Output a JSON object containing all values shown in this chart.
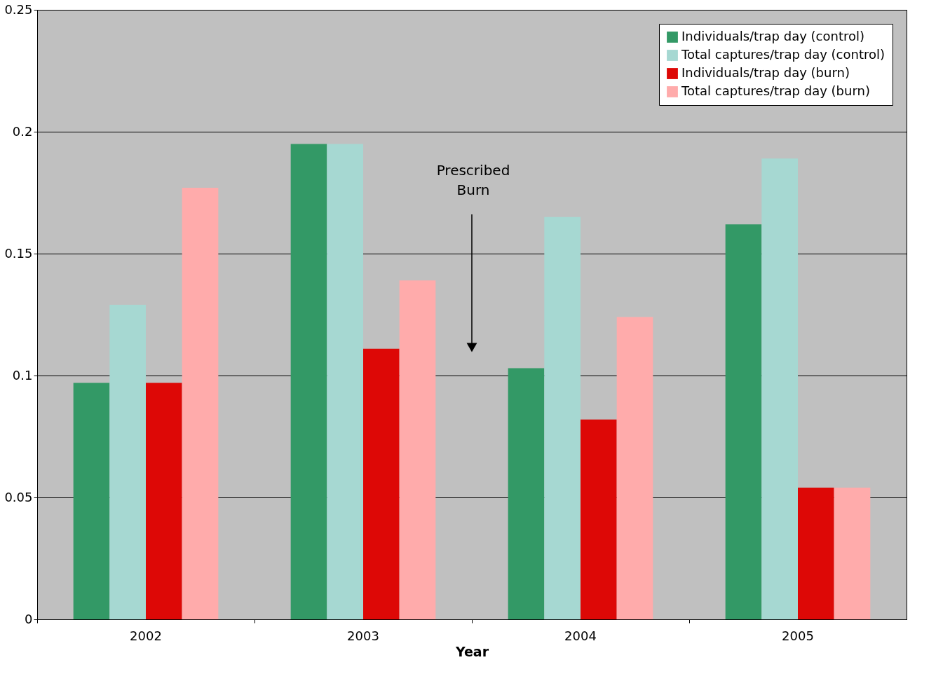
{
  "chart_data": {
    "type": "bar",
    "xlabel": "Year",
    "categories": [
      "2002",
      "2003",
      "2004",
      "2005"
    ],
    "series": [
      {
        "name": "Individuals/trap day (control)",
        "color": "#339966",
        "values": [
          0.097,
          0.195,
          0.103,
          0.162
        ]
      },
      {
        "name": "Total captures/trap day (control)",
        "color": "#a6d8d2",
        "values": [
          0.129,
          0.195,
          0.165,
          0.189
        ]
      },
      {
        "name": "Individuals/trap day (burn)",
        "color": "#dd0806",
        "values": [
          0.097,
          0.111,
          0.082,
          0.054
        ]
      },
      {
        "name": "Total captures/trap day (burn)",
        "color": "#ffabab",
        "values": [
          0.177,
          0.139,
          0.124,
          0.054
        ]
      }
    ],
    "ylim": [
      0,
      0.25
    ],
    "yticks": [
      0,
      0.05,
      0.1,
      0.15,
      0.2,
      0.25
    ],
    "grid": "y",
    "legend": "top right",
    "annotations": [
      "Prescribed\nBurn"
    ]
  }
}
